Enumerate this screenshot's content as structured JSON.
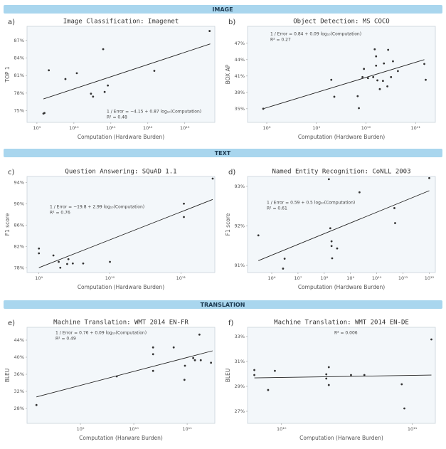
{
  "banners": [
    "IMAGE",
    "TEXT",
    "TRANSLATION"
  ],
  "chart_data": [
    {
      "type": "scatter",
      "panel": "a)",
      "title": "Image Classification: Imagenet",
      "xlabel": "Computation (Hardware Burden)",
      "ylabel": "TOP 1",
      "xscale": "log",
      "color": "#333333",
      "x": [
        1500000000.0,
        1600000000.0,
        2100000000.0,
        5900000000.0,
        12000000000.0,
        29000000000.0,
        33000000000.0,
        62000000000.0,
        68000000000.0,
        83000000000.0,
        1500000000000.0,
        47000000000000.0
      ],
      "values": [
        74.5,
        74.6,
        81.9,
        80.4,
        81.4,
        77.9,
        77.4,
        85.5,
        78.2,
        79.3,
        81.8,
        88.6
      ],
      "fit": {
        "x": [
          1500000000.0,
          49000000000000.0
        ],
        "y": [
          77.0,
          86.4
        ]
      },
      "annotations": [
        "1 / Error = −4.15 + 0.87 log₁₀(Computation)",
        "R² = 0.48"
      ],
      "xlim": [
        540000000.0,
        65000000000000.0
      ],
      "ylim": [
        73,
        89.4
      ],
      "xticks": [
        {
          "value": 1000000000.0,
          "label": "10⁹"
        },
        {
          "value": 10000000000.0,
          "label": "10¹⁰"
        },
        {
          "value": 100000000000.0,
          "label": "10¹¹"
        },
        {
          "value": 1000000000000.0,
          "label": "10¹²"
        },
        {
          "value": 10000000000000.0,
          "label": "10¹³"
        }
      ],
      "yticks": [
        {
          "value": 75,
          "label": "75%"
        },
        {
          "value": 78,
          "label": "78%"
        },
        {
          "value": 81,
          "label": "81%"
        },
        {
          "value": 84,
          "label": "84%"
        },
        {
          "value": 87,
          "label": "87%"
        }
      ]
    },
    {
      "type": "scatter",
      "panel": "b)",
      "title": "Object Detection: MS COCO",
      "xlabel": "Computation (Hardware Burden)",
      "ylabel": "BOX AP",
      "xscale": "log",
      "color": "#333333",
      "x": [
        85000000.0,
        2000000000.0,
        2300000000.0,
        6800000000.0,
        7200000000.0,
        8500000000.0,
        9100000000.0,
        11000000000.0,
        14000000000.0,
        15000000000.0,
        16000000000.0,
        16000000000.0,
        17000000000.0,
        19000000000.0,
        22000000000.0,
        23000000000.0,
        27000000000.0,
        28000000000.0,
        32000000000.0,
        35000000000.0,
        44000000000.0,
        150000000000.0,
        160000000000.0
      ],
      "values": [
        35.0,
        40.3,
        37.2,
        37.3,
        35.1,
        40.8,
        42.3,
        40.6,
        40.8,
        45.9,
        44.6,
        42.9,
        40.2,
        38.6,
        40.1,
        43.3,
        39.1,
        45.8,
        40.8,
        43.7,
        41.9,
        43.2,
        40.3
      ],
      "fit": {
        "x": [
          85000000.0,
          150000000000.0
        ],
        "y": [
          35.0,
          44.0
        ]
      },
      "annotations": [
        "1 / Error = 0.84 + 0.09 log₁₀(Computation)",
        "R² = 0.27"
      ],
      "xlim": [
        41000000.0,
        250000000000.0
      ],
      "ylim": [
        32.5,
        50.1
      ],
      "xticks": [
        {
          "value": 100000000.0,
          "label": "10⁸"
        },
        {
          "value": 1000000000.0,
          "label": "10⁹"
        },
        {
          "value": 10000000000.0,
          "label": "10¹⁰"
        },
        {
          "value": 100000000000.0,
          "label": "10¹¹"
        }
      ],
      "yticks": [
        {
          "value": 35,
          "label": "35%"
        },
        {
          "value": 38,
          "label": "38%"
        },
        {
          "value": 41,
          "label": "41%"
        },
        {
          "value": 44,
          "label": "44%"
        },
        {
          "value": 47,
          "label": "47%"
        }
      ]
    },
    {
      "type": "scatter",
      "panel": "c)",
      "title": "Question Answering: SQuAD 1.1",
      "xlabel": "Computation (Hardware Burden)",
      "ylabel": "F1 score",
      "xscale": "log",
      "color": "#333333",
      "x": [
        1000000000.0,
        1000000000.0,
        1600000000.0,
        1900000000.0,
        2000000000.0,
        2500000000.0,
        2600000000.0,
        3000000000.0,
        4200000000.0,
        10000000000.0,
        110000000000.0,
        110000000000.0,
        280000000000.0
      ],
      "values": [
        81.6,
        80.7,
        80.3,
        79.1,
        78.0,
        78.7,
        79.6,
        78.8,
        78.8,
        79.1,
        90.0,
        87.5,
        94.7
      ],
      "fit": {
        "x": [
          1000000000.0,
          280000000000.0
        ],
        "y": [
          78.0,
          90.8
        ]
      },
      "annotations": [
        "1 / Error = −19.8 + 2.99 log₁₀(Computation)",
        "R² = 0.76"
      ],
      "xlim": [
        680000000.0,
        300000000000.0
      ],
      "ylim": [
        77.1,
        95.1
      ],
      "xticks": [
        {
          "value": 1000000000.0,
          "label": "10⁹"
        },
        {
          "value": 10000000000.0,
          "label": "10¹⁰"
        },
        {
          "value": 100000000000.0,
          "label": "10¹¹"
        }
      ],
      "yticks": [
        {
          "value": 78,
          "label": "78%"
        },
        {
          "value": 82,
          "label": "82%"
        },
        {
          "value": 86,
          "label": "86%"
        },
        {
          "value": 90,
          "label": "90%"
        },
        {
          "value": 94,
          "label": "94%"
        }
      ]
    },
    {
      "type": "scatter",
      "panel": "d)",
      "title": "Named Entity Recognition: CoNLL 2003",
      "xlabel": "Computation (Hardware Burden)",
      "ylabel": "F1 score",
      "xscale": "log",
      "color": "#333333",
      "x": [
        310000.0,
        2700000.0,
        3100000.0,
        150000000.0,
        170000000.0,
        190000000.0,
        190000000.0,
        200000000.0,
        310000000.0,
        2200000000.0,
        47000000000.0,
        50000000000.0,
        1000000000000.0
      ],
      "values": [
        91.76,
        90.92,
        91.17,
        93.18,
        91.94,
        91.61,
        91.49,
        91.18,
        91.43,
        92.85,
        92.45,
        92.07,
        93.21
      ],
      "fit": {
        "x": [
          310000.0,
          1000000000000.0
        ],
        "y": [
          91.12,
          92.89
        ]
      },
      "annotations": [
        "1 / Error = 0.59 + 0.5 log₁₀(Computation)",
        "R² = 0.61"
      ],
      "xlim": [
        120000.0,
        1700000000000.0
      ],
      "ylim": [
        90.82,
        93.25
      ],
      "xticks": [
        {
          "value": 1000000.0,
          "label": "10⁶"
        },
        {
          "value": 10000000.0,
          "label": "10⁷"
        },
        {
          "value": 100000000.0,
          "label": "10⁸"
        },
        {
          "value": 1000000000.0,
          "label": "10⁹"
        },
        {
          "value": 10000000000.0,
          "label": "10¹⁰"
        },
        {
          "value": 100000000000.0,
          "label": "10¹¹"
        },
        {
          "value": 1000000000000.0,
          "label": "10¹²"
        }
      ],
      "yticks": [
        {
          "value": 91,
          "label": "91%"
        },
        {
          "value": 92,
          "label": "92%"
        },
        {
          "value": 93,
          "label": "93%"
        }
      ]
    },
    {
      "type": "scatter",
      "panel": "e)",
      "title": "Machine Translation: WMT 2014 EN-FR",
      "xlabel": "Computation (Harware Burden)",
      "ylabel": "BLEU",
      "xscale": "log",
      "color": "#333333",
      "x": [
        150000000.0,
        4800000000.0,
        23000000000.0,
        23000000000.0,
        23000000000.0,
        56000000000.0,
        89000000000.0,
        91000000000.0,
        130000000000.0,
        140000000000.0,
        170000000000.0,
        180000000000.0,
        280000000000.0
      ],
      "values": [
        28.8,
        35.5,
        42.3,
        40.7,
        36.8,
        42.3,
        34.7,
        38.0,
        39.8,
        39.3,
        45.3,
        39.3,
        38.7
      ],
      "fit": {
        "x": [
          150000000.0,
          300000000000.0
        ],
        "y": [
          30.7,
          41.5
        ]
      },
      "annotations": [
        "1 / Error = 0.76 + 0.09 log₁₀(Computation)",
        "R² = 0.49"
      ],
      "xlim": [
        100000000.0,
        330000000000.0
      ],
      "ylim": [
        24.5,
        47
      ],
      "xticks": [
        {
          "value": 1000000000.0,
          "label": "10⁹"
        },
        {
          "value": 10000000000.0,
          "label": "10¹⁰"
        },
        {
          "value": 100000000000.0,
          "label": "10¹¹"
        }
      ],
      "yticks": [
        {
          "value": 28,
          "label": "28%"
        },
        {
          "value": 32,
          "label": "32%"
        },
        {
          "value": 36,
          "label": "36%"
        },
        {
          "value": 40,
          "label": "40%"
        },
        {
          "value": 44,
          "label": "44%"
        }
      ]
    },
    {
      "type": "scatter",
      "panel": "f)",
      "title": "Machine Translation: WMT 2014 EN-DE",
      "xlabel": "Computation (Harware Burden)",
      "ylabel": "BLEU",
      "xscale": "log",
      "color": "#333333",
      "x": [
        6200000000.0,
        6200000000.0,
        7900000000.0,
        8900000000.0,
        22000000000.0,
        22000000000.0,
        23000000000.0,
        23000000000.0,
        34000000000.0,
        43000000000.0,
        83000000000.0,
        87000000000.0,
        140000000000.0
      ],
      "values": [
        30.31,
        29.91,
        28.71,
        30.25,
        29.97,
        29.63,
        30.54,
        29.11,
        29.91,
        29.91,
        29.17,
        27.23,
        32.77
      ],
      "fit": {
        "x": [
          6200000000.0,
          140000000000.0
        ],
        "y": [
          29.68,
          29.91
        ]
      },
      "annotations": [
        "R² = 0.006"
      ],
      "xlim": [
        5500000000.0,
        150000000000.0
      ],
      "ylim": [
        26.03,
        33.74
      ],
      "xticks": [
        {
          "value": 10000000000.0,
          "label": "10¹⁰"
        },
        {
          "value": 100000000000.0,
          "label": "10¹¹"
        }
      ],
      "yticks": [
        {
          "value": 27,
          "label": "27%"
        },
        {
          "value": 29,
          "label": "29%"
        },
        {
          "value": 31,
          "label": "31%"
        },
        {
          "value": 33,
          "label": "33%"
        }
      ]
    }
  ]
}
